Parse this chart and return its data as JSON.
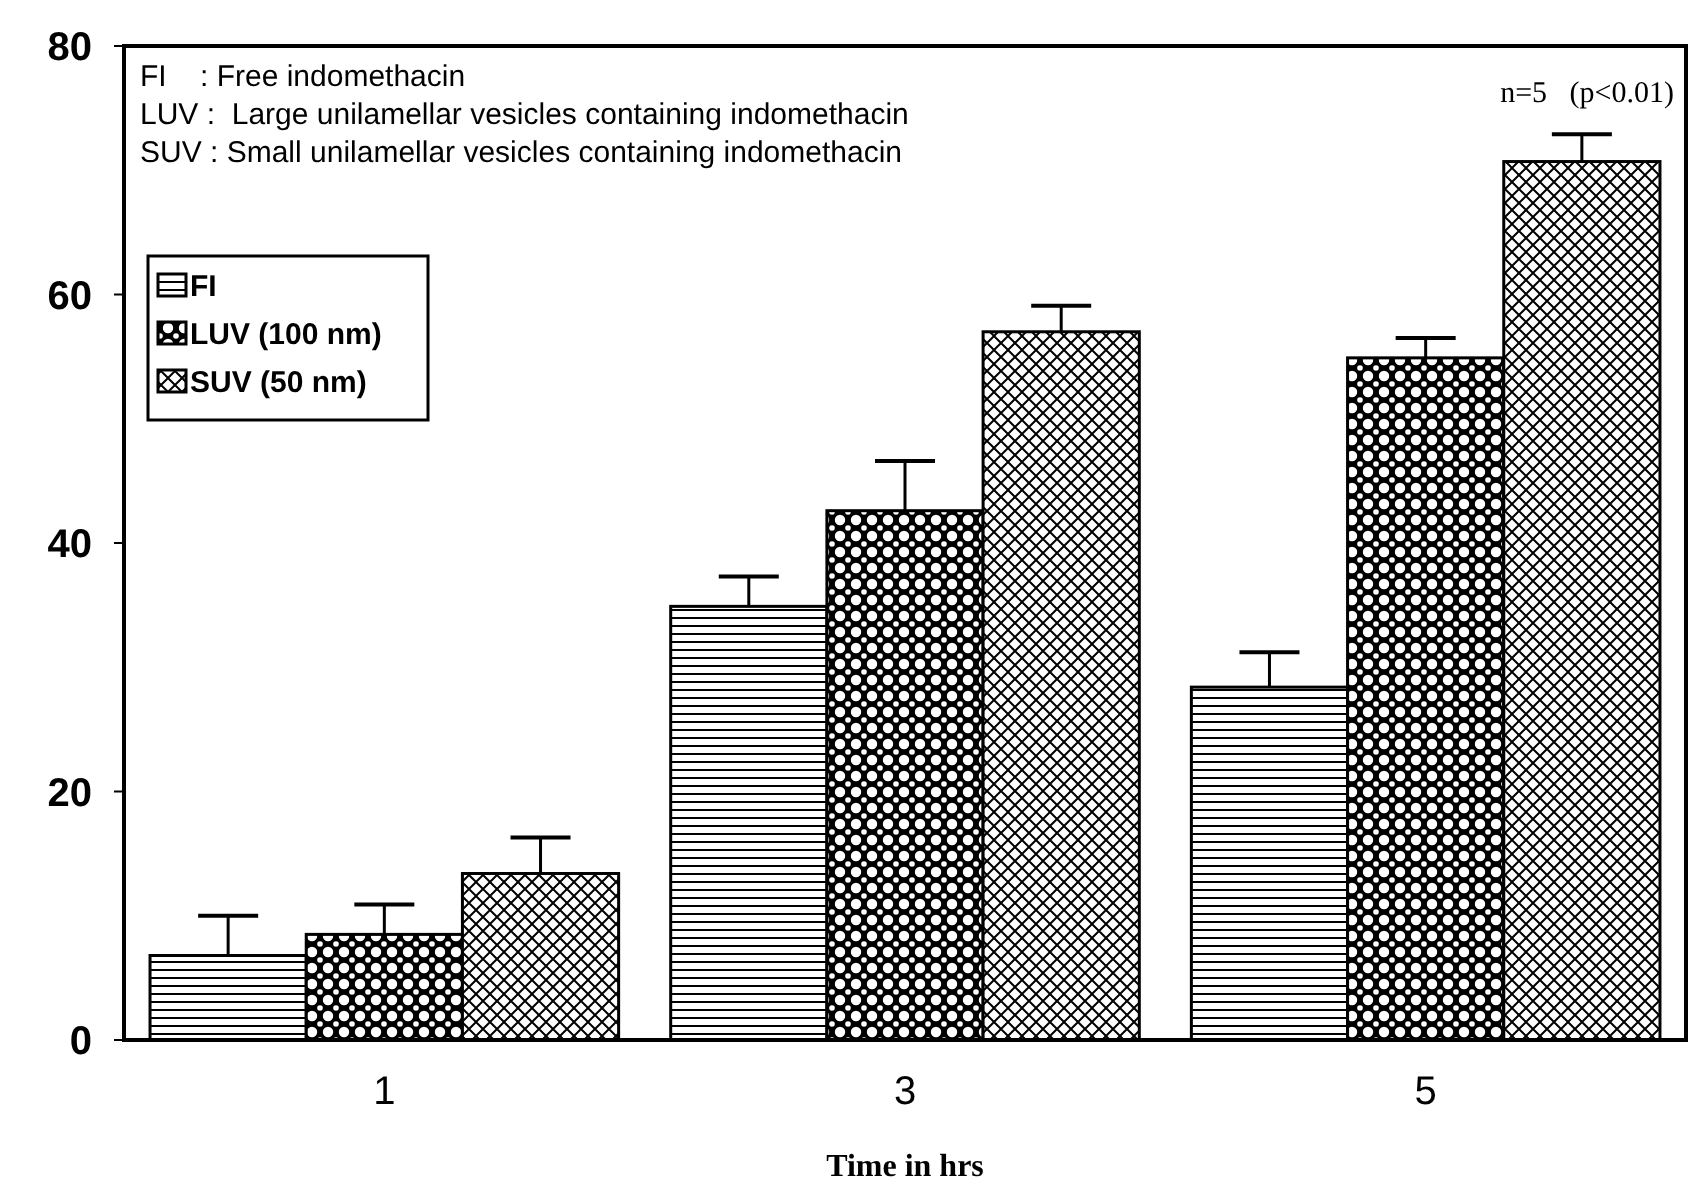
{
  "chart_data": {
    "type": "bar",
    "xlabel": "Time in hrs",
    "categories": [
      "1",
      "3",
      "5"
    ],
    "series": [
      {
        "name": "FI",
        "color": "#000000",
        "values": [
          6.8,
          34.9,
          28.4
        ],
        "errors": [
          3.2,
          2.4,
          2.8
        ]
      },
      {
        "name": "LUV (100 nm)",
        "color": "#000000",
        "values": [
          8.5,
          42.6,
          54.9
        ],
        "errors": [
          2.4,
          4.0,
          1.6
        ]
      },
      {
        "name": "SUV (50 nm)",
        "color": "#000000",
        "values": [
          13.4,
          57.0,
          70.7
        ],
        "errors": [
          2.9,
          2.1,
          2.2
        ]
      }
    ],
    "ylim": [
      0,
      80
    ],
    "yticks": [
      0,
      20,
      40,
      60,
      80
    ],
    "grid": false,
    "legend": "top left",
    "annotations": [
      "FI    : Free indomethacin",
      "LUV :  Large unilamellar vesicles containing indomethacin",
      "SUV : Small unilamellar vesicles containing indomethacin",
      "n=5   (p<0.01)"
    ]
  }
}
